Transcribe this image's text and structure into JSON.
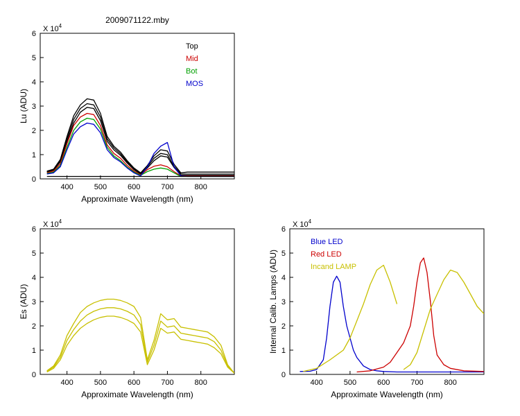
{
  "figure_title": "2009071122.mby",
  "chart_data": [
    {
      "id": "lu",
      "type": "line",
      "title": "2009071122.mby",
      "xlabel": "Approximate Wavelength (nm)",
      "ylabel": "Lu (ADU)",
      "multiplier": "X 10",
      "exponent": "4",
      "xlim": [
        320,
        900
      ],
      "ylim": [
        0,
        6
      ],
      "xticks": [
        400,
        500,
        600,
        700,
        800
      ],
      "yticks": [
        0,
        1,
        2,
        3,
        4,
        5,
        6
      ],
      "legend": [
        "Top",
        "Mid",
        "Bot",
        "MOS"
      ],
      "legend_colors": [
        "#000000",
        "#cc0000",
        "#00a000",
        "#0000cc"
      ],
      "legend_position": "top-right",
      "series": [
        {
          "name": "Top",
          "color": "#000000",
          "x": [
            340,
            360,
            380,
            400,
            420,
            440,
            460,
            480,
            500,
            520,
            540,
            560,
            580,
            600,
            620,
            640,
            660,
            680,
            700,
            720,
            740,
            760,
            800,
            900
          ],
          "values": [
            0.32,
            0.4,
            0.8,
            1.75,
            2.6,
            3.05,
            3.3,
            3.25,
            2.7,
            1.75,
            1.35,
            1.1,
            0.75,
            0.45,
            0.25,
            0.55,
            0.95,
            1.2,
            1.15,
            0.6,
            0.25,
            0.28,
            0.28,
            0.28
          ]
        },
        {
          "name": "Top",
          "color": "#000000",
          "x": [
            340,
            360,
            380,
            400,
            420,
            440,
            460,
            480,
            500,
            520,
            540,
            560,
            580,
            600,
            620,
            640,
            660,
            680,
            700,
            720,
            740,
            760,
            800,
            900
          ],
          "values": [
            0.3,
            0.38,
            0.75,
            1.65,
            2.45,
            2.9,
            3.1,
            3.05,
            2.55,
            1.65,
            1.28,
            1.03,
            0.7,
            0.42,
            0.22,
            0.5,
            0.85,
            1.05,
            1.0,
            0.52,
            0.2,
            0.2,
            0.2,
            0.2
          ]
        },
        {
          "name": "Top",
          "color": "#000000",
          "x": [
            340,
            360,
            380,
            400,
            420,
            440,
            460,
            480,
            500,
            520,
            540,
            560,
            580,
            600,
            620,
            640,
            660,
            680,
            700,
            720,
            740,
            760,
            800,
            900
          ],
          "values": [
            0.28,
            0.36,
            0.7,
            1.55,
            2.3,
            2.75,
            2.95,
            2.9,
            2.4,
            1.55,
            1.2,
            0.97,
            0.65,
            0.38,
            0.2,
            0.45,
            0.75,
            0.95,
            0.9,
            0.47,
            0.15,
            0.15,
            0.15,
            0.15
          ]
        },
        {
          "name": "Mid",
          "color": "#cc0000",
          "x": [
            340,
            360,
            380,
            400,
            420,
            440,
            460,
            480,
            500,
            520,
            540,
            560,
            580,
            600,
            620,
            640,
            660,
            680,
            700,
            720,
            740,
            760,
            800,
            900
          ],
          "values": [
            0.25,
            0.32,
            0.62,
            1.45,
            2.2,
            2.55,
            2.7,
            2.65,
            2.2,
            1.4,
            1.05,
            0.85,
            0.55,
            0.32,
            0.17,
            0.38,
            0.52,
            0.58,
            0.5,
            0.3,
            0.12,
            0.12,
            0.12,
            0.12
          ]
        },
        {
          "name": "Bot",
          "color": "#00a000",
          "x": [
            340,
            360,
            380,
            400,
            420,
            440,
            460,
            480,
            500,
            520,
            540,
            560,
            580,
            600,
            620,
            640,
            660,
            680,
            700,
            720,
            740,
            760,
            800,
            900
          ],
          "values": [
            0.22,
            0.28,
            0.55,
            1.3,
            2.0,
            2.35,
            2.5,
            2.45,
            2.05,
            1.3,
            0.95,
            0.75,
            0.48,
            0.28,
            0.15,
            0.3,
            0.4,
            0.45,
            0.4,
            0.25,
            0.1,
            0.1,
            0.1,
            0.1
          ]
        },
        {
          "name": "MOS",
          "color": "#0000cc",
          "x": [
            340,
            360,
            380,
            400,
            420,
            440,
            460,
            480,
            500,
            520,
            540,
            560,
            580,
            600,
            620,
            640,
            660,
            680,
            700,
            720,
            740,
            760,
            800,
            900
          ],
          "values": [
            0.2,
            0.25,
            0.5,
            1.2,
            1.85,
            2.15,
            2.3,
            2.25,
            1.9,
            1.2,
            0.88,
            0.7,
            0.45,
            0.25,
            0.12,
            0.5,
            1.05,
            1.35,
            1.5,
            0.5,
            0.12,
            0.1,
            0.1,
            0.1
          ]
        },
        {
          "name": "",
          "color": "#000000",
          "x": [
            340,
            900
          ],
          "values": [
            0.1,
            0.1
          ]
        }
      ]
    },
    {
      "id": "es",
      "type": "line",
      "title": "",
      "xlabel": "Approximate Wavelength (nm)",
      "ylabel": "Es (ADU)",
      "multiplier": "X 10",
      "exponent": "4",
      "xlim": [
        320,
        900
      ],
      "ylim": [
        0,
        6
      ],
      "xticks": [
        400,
        500,
        600,
        700,
        800
      ],
      "yticks": [
        0,
        1,
        2,
        3,
        4,
        5,
        6
      ],
      "series": [
        {
          "name": "",
          "color": "#c8c000",
          "x": [
            340,
            360,
            380,
            400,
            420,
            440,
            460,
            480,
            500,
            520,
            540,
            560,
            580,
            600,
            620,
            640,
            660,
            680,
            700,
            720,
            740,
            760,
            780,
            800,
            820,
            840,
            860,
            880,
            900
          ],
          "values": [
            0.15,
            0.35,
            0.8,
            1.6,
            2.1,
            2.55,
            2.8,
            2.95,
            3.05,
            3.1,
            3.1,
            3.05,
            2.95,
            2.8,
            2.35,
            0.6,
            1.4,
            2.5,
            2.25,
            2.3,
            1.95,
            1.9,
            1.85,
            1.8,
            1.75,
            1.55,
            1.2,
            0.4,
            0.05
          ]
        },
        {
          "name": "",
          "color": "#c8c000",
          "x": [
            340,
            360,
            380,
            400,
            420,
            440,
            460,
            480,
            500,
            520,
            540,
            560,
            580,
            600,
            620,
            640,
            660,
            680,
            700,
            720,
            740,
            760,
            780,
            800,
            820,
            840,
            860,
            880,
            900
          ],
          "values": [
            0.13,
            0.3,
            0.7,
            1.4,
            1.85,
            2.2,
            2.45,
            2.6,
            2.7,
            2.75,
            2.75,
            2.7,
            2.6,
            2.45,
            2.05,
            0.5,
            1.2,
            2.2,
            1.95,
            2.0,
            1.7,
            1.65,
            1.6,
            1.55,
            1.5,
            1.35,
            1.0,
            0.35,
            0.05
          ]
        },
        {
          "name": "",
          "color": "#c8c000",
          "x": [
            340,
            360,
            380,
            400,
            420,
            440,
            460,
            480,
            500,
            520,
            540,
            560,
            580,
            600,
            620,
            640,
            660,
            680,
            700,
            720,
            740,
            760,
            780,
            800,
            820,
            840,
            860,
            880,
            900
          ],
          "values": [
            0.1,
            0.25,
            0.6,
            1.2,
            1.6,
            1.9,
            2.1,
            2.25,
            2.35,
            2.4,
            2.4,
            2.35,
            2.25,
            2.1,
            1.75,
            0.4,
            1.0,
            1.9,
            1.7,
            1.75,
            1.45,
            1.4,
            1.35,
            1.3,
            1.25,
            1.1,
            0.85,
            0.3,
            0.05
          ]
        }
      ]
    },
    {
      "id": "lamps",
      "type": "line",
      "title": "",
      "xlabel": "Approximate Wavelength (nm)",
      "ylabel": "Internal Calib. Lamps (ADU)",
      "multiplier": "X 10",
      "exponent": "4",
      "xlim": [
        320,
        900
      ],
      "ylim": [
        0,
        6
      ],
      "xticks": [
        400,
        500,
        600,
        700,
        800
      ],
      "yticks": [
        0,
        1,
        2,
        3,
        4,
        5,
        6
      ],
      "legend": [
        "Blue LED",
        "Red LED",
        "Incand LAMP"
      ],
      "legend_colors": [
        "#0000cc",
        "#cc0000",
        "#c8c000"
      ],
      "legend_position": "top-left",
      "series": [
        {
          "name": "Blue LED",
          "color": "#0000cc",
          "x": [
            350,
            380,
            400,
            420,
            430,
            440,
            450,
            460,
            470,
            480,
            490,
            500,
            510,
            520,
            540,
            560,
            580,
            600,
            640,
            700,
            800,
            900
          ],
          "values": [
            0.12,
            0.13,
            0.2,
            0.6,
            1.5,
            2.8,
            3.8,
            4.05,
            3.8,
            2.8,
            2.0,
            1.5,
            1.0,
            0.7,
            0.35,
            0.2,
            0.15,
            0.12,
            0.1,
            0.1,
            0.1,
            0.1
          ]
        },
        {
          "name": "Red LED",
          "color": "#cc0000",
          "x": [
            520,
            560,
            600,
            620,
            640,
            660,
            680,
            690,
            700,
            710,
            720,
            730,
            740,
            750,
            760,
            780,
            800,
            840,
            900
          ],
          "values": [
            0.1,
            0.15,
            0.3,
            0.5,
            0.9,
            1.3,
            2.0,
            2.8,
            3.8,
            4.6,
            4.8,
            4.2,
            3.0,
            1.6,
            0.8,
            0.4,
            0.25,
            0.15,
            0.12
          ]
        },
        {
          "name": "Incand LAMP",
          "color": "#c8c000",
          "x": [
            360,
            400,
            440,
            480,
            500,
            520,
            540,
            560,
            580,
            600,
            620,
            640
          ],
          "values": [
            0.12,
            0.25,
            0.6,
            1.0,
            1.5,
            2.2,
            2.9,
            3.7,
            4.3,
            4.5,
            3.8,
            2.9
          ]
        },
        {
          "name": "Incand LAMP",
          "color": "#c8c000",
          "x": [
            660,
            680,
            700,
            720,
            740,
            760,
            780,
            800,
            820,
            840,
            860,
            880,
            900
          ],
          "values": [
            0.2,
            0.4,
            0.9,
            1.8,
            2.7,
            3.3,
            3.9,
            4.3,
            4.2,
            3.8,
            3.3,
            2.8,
            2.5
          ]
        }
      ]
    }
  ]
}
